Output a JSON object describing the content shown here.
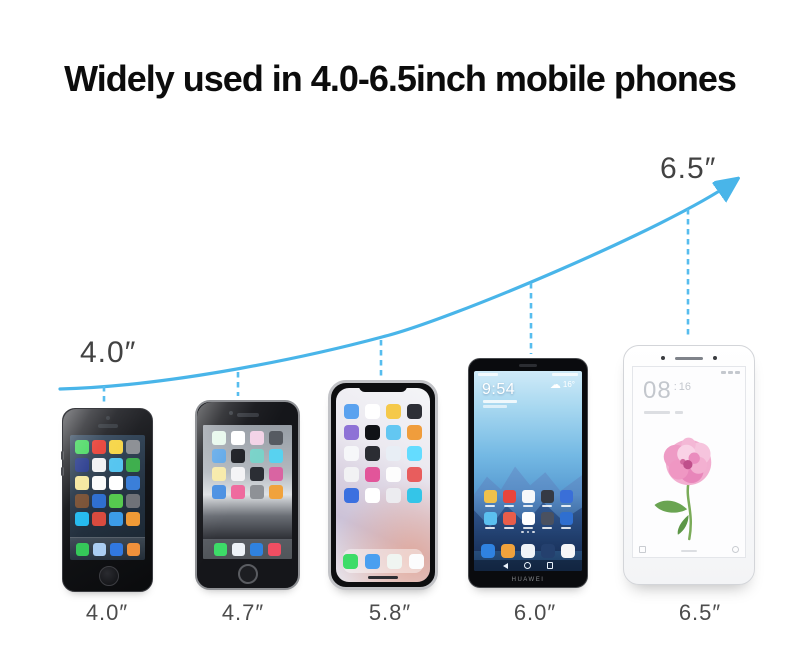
{
  "title": "Widely used in 4.0-6.5inch mobile phones",
  "colors": {
    "accent_blue": "#49b5e9",
    "label_gray": "#4c4c4c"
  },
  "curve": {
    "start_label": "4.0″",
    "end_label": "6.5″"
  },
  "phones": [
    {
      "model": "iphone-5",
      "size_label": "4.0″",
      "app_icon_colors": [
        "#4cd964",
        "#e8453c",
        "#f7d64a",
        "#8e9196",
        "#2c3e8f",
        "#f2f3f5",
        "#56c5f0",
        "#3faf4e",
        "#f5e7a0",
        "#fbfbfb",
        "#ffffff",
        "#3b7fd9",
        "#7a5236",
        "#2f6fd0",
        "#56c94f",
        "#6f7278",
        "#25baef",
        "#d94b3f",
        "#3c9ce8",
        "#f09a36"
      ],
      "dock_icon_colors": [
        "#35c759",
        "#aacdf2",
        "#3178e0",
        "#f0913b"
      ]
    },
    {
      "model": "iphone-6",
      "size_label": "4.7″",
      "app_icon_colors": [
        "#e7f8ec",
        "#ffffff",
        "#f3d3e7",
        "#565a61",
        "#5fa8e8",
        "#1d1f24",
        "#7ad3c9",
        "#58d2f0",
        "#f7eaa9",
        "#f4f4f6",
        "#2b2e34",
        "#d964a2",
        "#4a90e2",
        "#ef6a9e",
        "#8e9196",
        "#f0a23c"
      ],
      "dock_icon_colors": [
        "#3ddc68",
        "#eef3f8",
        "#2f82e0",
        "#ef4e62"
      ]
    },
    {
      "model": "iphone-x",
      "size_label": "5.8″",
      "app_icon_colors": [
        "#5aa2ef",
        "#ffffff",
        "#f5c94a",
        "#2d2f36",
        "#8e72d6",
        "#101216",
        "#63c7f2",
        "#f09d3c",
        "#f6f7f9",
        "#2b2d33",
        "#e8eef5",
        "#64dcff",
        "#f2f2f4",
        "#e2559a",
        "#fdfdfd",
        "#e85d5d",
        "#3b70e0",
        "#ffffff",
        "#ececf0",
        "#34c5e8"
      ],
      "dock_icon_colors": [
        "#3ddc68",
        "#4a9ff0",
        "#f0f5f1",
        "#fcfcfd"
      ]
    },
    {
      "model": "huawei",
      "size_label": "6.0″",
      "clock": "9:54",
      "temperature": "16°",
      "weather_icon": "cloud",
      "brand": "HUAWEI",
      "app_icon_colors": [
        "#f0c14b",
        "#e8453c",
        "#f6f8fa",
        "#353a44",
        "#3a6fd8",
        "#5bc0f0",
        "#e85d4a",
        "#ffffff",
        "#4a5160",
        "#2f6fd0"
      ],
      "dock_icon_colors": [
        "#2f82e0",
        "#f0a23c",
        "#eef3f8",
        "#24406e",
        "#f5f6f8"
      ]
    },
    {
      "model": "xiaomi-mi-max",
      "size_label": "6.5″",
      "clock_hours": "08",
      "clock_separator": ":",
      "clock_minutes": "16"
    }
  ]
}
